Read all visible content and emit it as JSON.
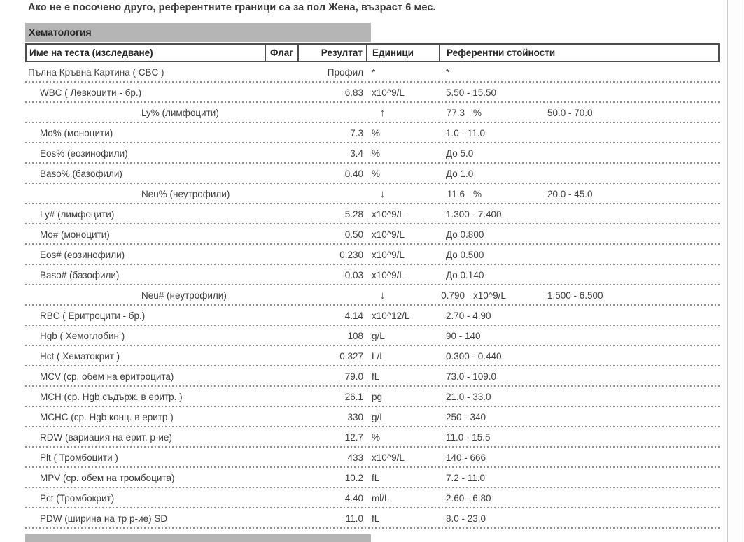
{
  "page": {
    "statement": "Ако не е посочено друго, референтните граници са за пол Жена, възраст 6 мес.",
    "section_title": "Хематология"
  },
  "colors": {
    "section_bar": "#b5b5b5",
    "flag_high_bg": "#f5a8a2",
    "flag_low_bg": "#c7e0f3",
    "border": "#4d4d4d",
    "separator": "#8f8f8f"
  },
  "icons": {
    "flag_high": "↑",
    "flag_low": "↓"
  },
  "table": {
    "headers": {
      "name": "Име на теста (изследване)",
      "flag": "Флаг",
      "result": "Резултат",
      "units": "Единици",
      "reference": "Референтни стойности"
    },
    "rows": [
      {
        "name": "Пълна Кръвна Картина ( CBC )",
        "indent": false,
        "flag": null,
        "result": "Профил",
        "units": "*",
        "reference": "*"
      },
      {
        "name": "WBC ( Левкоцити - бр.)",
        "indent": true,
        "flag": null,
        "result": "6.83",
        "units": "x10^9/L",
        "reference": "5.50 - 15.50"
      },
      {
        "name": "Ly% (лимфоцити)",
        "indent": true,
        "flag": "high",
        "result": "77.3",
        "units": "%",
        "reference": "50.0 - 70.0"
      },
      {
        "name": "Mo% (моноцити)",
        "indent": true,
        "flag": null,
        "result": "7.3",
        "units": "%",
        "reference": "1.0 - 11.0"
      },
      {
        "name": "Eos% (еозинофили)",
        "indent": true,
        "flag": null,
        "result": "3.4",
        "units": "%",
        "reference": "До 5.0"
      },
      {
        "name": "Baso% (базофили)",
        "indent": true,
        "flag": null,
        "result": "0.40",
        "units": "%",
        "reference": "До 1.0"
      },
      {
        "name": "Neu% (неутрофили)",
        "indent": true,
        "flag": "low",
        "result": "11.6",
        "units": "%",
        "reference": "20.0 - 45.0"
      },
      {
        "name": "Ly# (лимфоцити)",
        "indent": true,
        "flag": null,
        "result": "5.28",
        "units": "x10^9/L",
        "reference": "1.300 - 7.400"
      },
      {
        "name": "Mo# (моноцити)",
        "indent": true,
        "flag": null,
        "result": "0.50",
        "units": "x10^9/L",
        "reference": "До 0.800"
      },
      {
        "name": "Eos# (еозинофили)",
        "indent": true,
        "flag": null,
        "result": "0.230",
        "units": "x10^9/L",
        "reference": "До 0.500"
      },
      {
        "name": "Baso# (базофили)",
        "indent": true,
        "flag": null,
        "result": "0.03",
        "units": "x10^9/L",
        "reference": "До 0.140"
      },
      {
        "name": "Neu# (неутрофили)",
        "indent": true,
        "flag": "low",
        "result": "0.790",
        "units": "x10^9/L",
        "reference": "1.500 - 6.500"
      },
      {
        "name": "RBC ( Еритроцити - бр.)",
        "indent": true,
        "flag": null,
        "result": "4.14",
        "units": "x10^12/L",
        "reference": "2.70 - 4.90"
      },
      {
        "name": "Hgb ( Хемоглобин )",
        "indent": true,
        "flag": null,
        "result": "108",
        "units": "g/L",
        "reference": "90 - 140"
      },
      {
        "name": "Hct ( Хематокрит )",
        "indent": true,
        "flag": null,
        "result": "0.327",
        "units": "L/L",
        "reference": "0.300 - 0.440"
      },
      {
        "name": "MCV (ср. обем на еритроцита)",
        "indent": true,
        "flag": null,
        "result": "79.0",
        "units": "fL",
        "reference": "73.0 - 109.0"
      },
      {
        "name": "MCH (ср. Hgb съдърж. в еритр. )",
        "indent": true,
        "flag": null,
        "result": "26.1",
        "units": "pg",
        "reference": "21.0 - 33.0"
      },
      {
        "name": "MCHC (ср. Hgb конц. в еритр.)",
        "indent": true,
        "flag": null,
        "result": "330",
        "units": "g/L",
        "reference": "250 - 340"
      },
      {
        "name": "RDW (вариация на ерит. р-ие)",
        "indent": true,
        "flag": null,
        "result": "12.7",
        "units": "%",
        "reference": "11.0 - 15.5"
      },
      {
        "name": "Plt ( Тромбоцити )",
        "indent": true,
        "flag": null,
        "result": "433",
        "units": "x10^9/L",
        "reference": "140 - 666"
      },
      {
        "name": "MPV (ср. обем на тромбоцита)",
        "indent": true,
        "flag": null,
        "result": "10.2",
        "units": "fL",
        "reference": "7.2 - 11.0"
      },
      {
        "name": "Pct (Тромбокрит)",
        "indent": true,
        "flag": null,
        "result": "4.40",
        "units": "ml/L",
        "reference": "2.60 - 6.80"
      },
      {
        "name": "PDW (ширина на тр р-ие) SD",
        "indent": true,
        "flag": null,
        "result": "11.0",
        "units": "fL",
        "reference": "8.0 - 23.0"
      }
    ]
  }
}
